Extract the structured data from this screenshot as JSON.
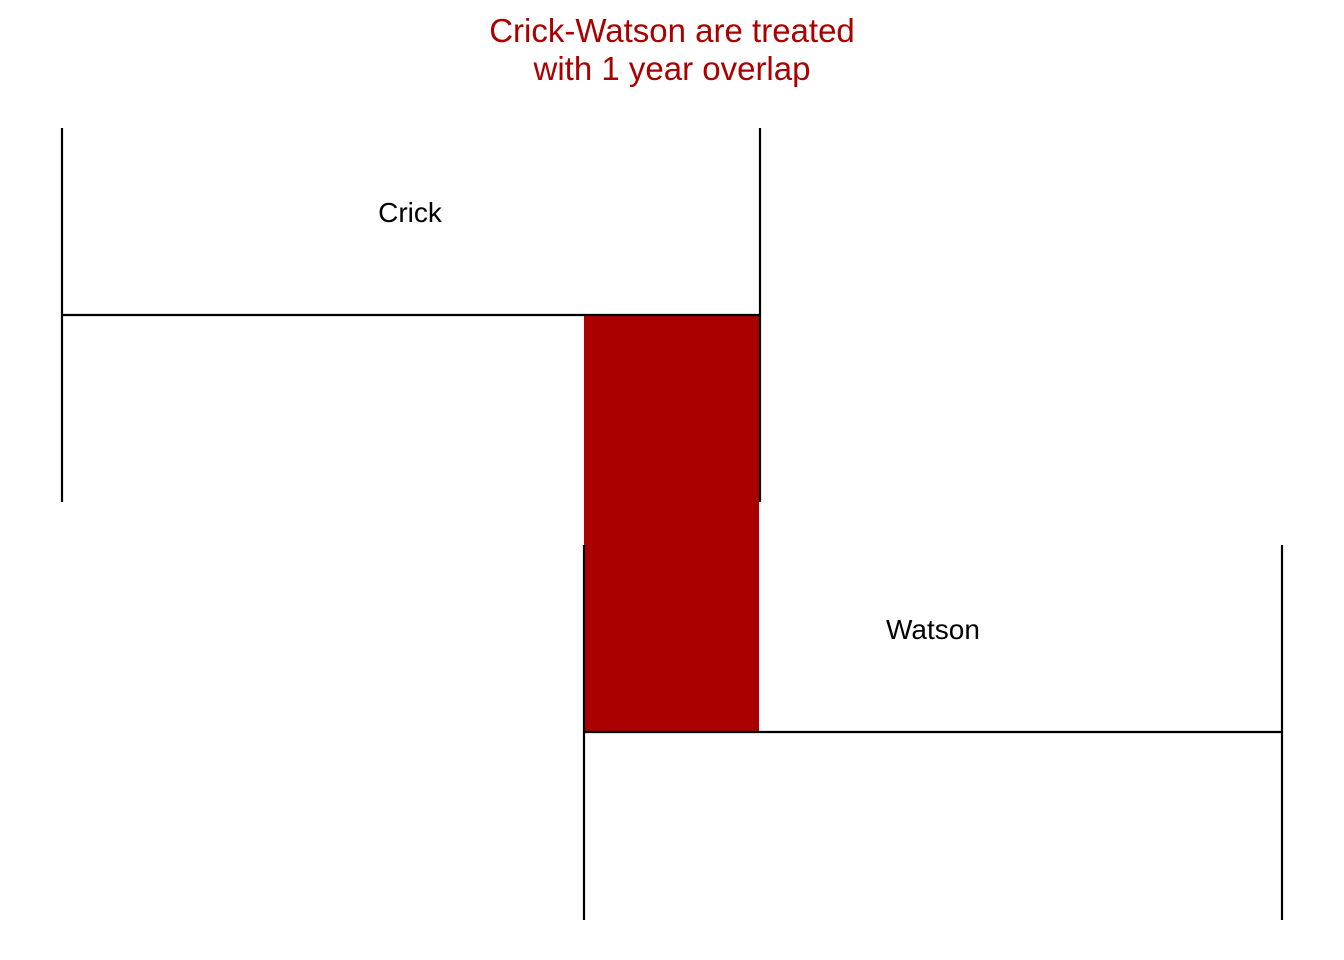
{
  "title": {
    "line1": "Crick-Watson are treated",
    "line2": "with 1 year overlap",
    "color": "#aa0000"
  },
  "colors": {
    "overlap_fill": "#aa0000",
    "line": "#000000",
    "label": "#000000"
  },
  "intervals": [
    {
      "name": "Crick"
    },
    {
      "name": "Watson"
    }
  ],
  "overlap": {
    "label": "1 year overlap"
  }
}
